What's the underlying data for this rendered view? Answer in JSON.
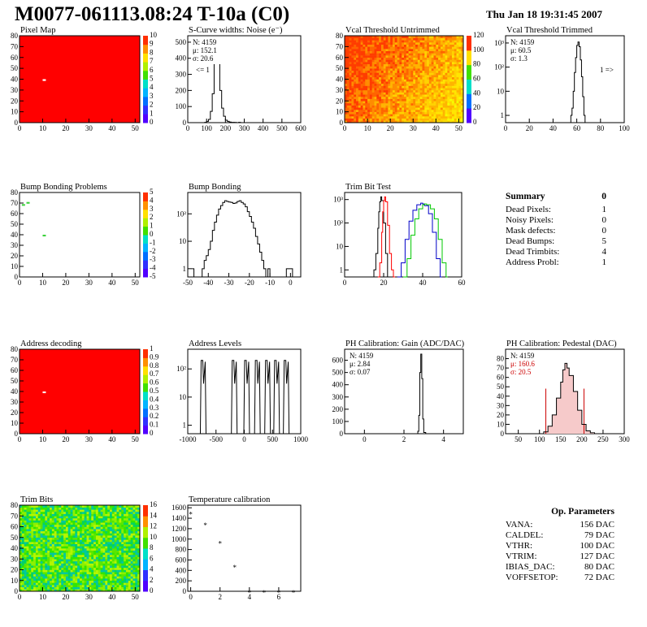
{
  "title": "M0077-061113.08:24 T-10a (C0)",
  "datetime": "Thu Jan 18 19:31:45 2007",
  "colors": {
    "red": "#ff0000",
    "green": "#00c800",
    "blue": "#0000c8",
    "pedestal_red": "#cc0000"
  },
  "summary": {
    "title": "Summary",
    "total": "0",
    "rows": [
      {
        "label": "Dead Pixels:",
        "value": "1"
      },
      {
        "label": "Noisy Pixels:",
        "value": "0"
      },
      {
        "label": "Mask defects:",
        "value": "0"
      },
      {
        "label": "Dead Bumps:",
        "value": "5"
      },
      {
        "label": "Dead Trimbits:",
        "value": "4"
      },
      {
        "label": "Address Probl:",
        "value": "1"
      }
    ]
  },
  "op_params": {
    "title": "Op. Parameters",
    "rows": [
      {
        "label": "VANA:",
        "value": "156 DAC"
      },
      {
        "label": "CALDEL:",
        "value": "79 DAC"
      },
      {
        "label": "VTHR:",
        "value": "100 DAC"
      },
      {
        "label": "VTRIM:",
        "value": "127 DAC"
      },
      {
        "label": "IBIAS_DAC:",
        "value": "80 DAC"
      },
      {
        "label": "VOFFSETOP:",
        "value": "72 DAC"
      }
    ]
  },
  "chart_data": [
    {
      "id": "pixel-map",
      "type": "heatmap",
      "title": "Pixel Map",
      "xlim": [
        0,
        52
      ],
      "ylim": [
        0,
        80
      ],
      "xticks": [
        "0",
        "10",
        "20",
        "30",
        "40",
        "50"
      ],
      "yticks": [
        "0",
        "10",
        "20",
        "30",
        "40",
        "50",
        "60",
        "70",
        "80"
      ],
      "fill": "red",
      "spots": [
        {
          "x": 10,
          "y": 39,
          "color": "white"
        }
      ],
      "palette_labels": [
        "0",
        "1",
        "2",
        "3",
        "4",
        "5",
        "6",
        "7",
        "8",
        "9",
        "10"
      ]
    },
    {
      "id": "scurve-widths",
      "type": "line",
      "title": "S-Curve widths: Noise (e⁻)",
      "xlim": [
        0,
        600
      ],
      "ylim": [
        0,
        540
      ],
      "xticks": [
        "0",
        "100",
        "200",
        "300",
        "400",
        "500",
        "600"
      ],
      "yticks": [
        "0",
        "100",
        "200",
        "300",
        "400",
        "500"
      ],
      "stats": [
        "N: 4159",
        "μ: 152.1",
        "σ: 20.6"
      ],
      "annotation": "<= 1",
      "x": [
        80,
        90,
        100,
        110,
        120,
        130,
        140,
        150,
        160,
        170,
        180,
        190,
        200,
        210,
        220,
        230,
        240,
        250,
        260,
        270,
        280
      ],
      "y": [
        0,
        2,
        8,
        20,
        70,
        180,
        420,
        520,
        400,
        200,
        90,
        40,
        15,
        8,
        4,
        2,
        2,
        1,
        0,
        2,
        0
      ]
    },
    {
      "id": "vcal-untrimmed",
      "type": "heatmap",
      "title": "Vcal Threshold Untrimmed",
      "xlim": [
        0,
        52
      ],
      "ylim": [
        0,
        80
      ],
      "xticks": [
        "0",
        "10",
        "20",
        "30",
        "40",
        "50"
      ],
      "yticks": [
        "0",
        "10",
        "20",
        "30",
        "40",
        "50",
        "60",
        "70",
        "80"
      ],
      "fill": "gradient-orange-yellow",
      "palette_labels": [
        "0",
        "20",
        "40",
        "60",
        "80",
        "100",
        "120"
      ]
    },
    {
      "id": "vcal-trimmed",
      "type": "line",
      "log": true,
      "title": "Vcal Threshold Trimmed",
      "xlim": [
        0,
        100
      ],
      "ylim": [
        0.5,
        2000
      ],
      "xticks": [
        "0",
        "20",
        "40",
        "60",
        "80",
        "100"
      ],
      "yticks": [
        "1",
        "10",
        "10²",
        "10³"
      ],
      "stats": [
        "N: 4159",
        "μ: 60.5",
        "σ:  1.3"
      ],
      "annotation": "1 =>",
      "x": [
        54,
        55,
        56,
        57,
        58,
        59,
        60,
        61,
        62,
        63,
        64,
        65,
        66,
        67
      ],
      "y": [
        0,
        1,
        2,
        10,
        60,
        250,
        800,
        1100,
        700,
        200,
        40,
        6,
        1,
        0
      ]
    },
    {
      "id": "bump-problems",
      "type": "heatmap",
      "title": "Bump Bonding Problems",
      "xlim": [
        0,
        52
      ],
      "ylim": [
        0,
        80
      ],
      "xticks": [
        "0",
        "10",
        "20",
        "30",
        "40",
        "50"
      ],
      "yticks": [
        "0",
        "10",
        "20",
        "30",
        "40",
        "50",
        "60",
        "70",
        "80"
      ],
      "fill": "white",
      "spots": [
        {
          "x": 10,
          "y": 39,
          "color": "#3cd23c"
        },
        {
          "x": 1,
          "y": 68,
          "color": "#3cd23c"
        },
        {
          "x": 3,
          "y": 70,
          "color": "#3cd23c"
        }
      ],
      "palette_labels": [
        "-5",
        "-4",
        "-3",
        "-2",
        "-1",
        "0",
        "1",
        "2",
        "3",
        "4",
        "5"
      ]
    },
    {
      "id": "bump-bonding",
      "type": "line",
      "log": true,
      "title": "Bump Bonding",
      "xlim": [
        -50,
        5
      ],
      "ylim": [
        0.5,
        600
      ],
      "xticks": [
        "-50",
        "-40",
        "-30",
        "-20",
        "-10",
        "0"
      ],
      "yticks": [
        "1",
        "10",
        "10²"
      ],
      "x": [
        -48,
        -47,
        -46,
        -45,
        -44,
        -43,
        -42,
        -41,
        -40,
        -39,
        -38,
        -37,
        -36,
        -35,
        -34,
        -33,
        -32,
        -31,
        -30,
        -29,
        -28,
        -27,
        -26,
        -25,
        -24,
        -23,
        -22,
        -21,
        -20,
        -19,
        -18,
        -17,
        -16,
        -15,
        -14,
        -13,
        -12,
        -11,
        -10,
        -9,
        -8,
        -7,
        -6,
        -5,
        -4,
        -3,
        -2,
        -1,
        0,
        1,
        2
      ],
      "y": [
        1,
        0,
        0,
        0,
        0,
        1,
        2,
        3,
        5,
        10,
        25,
        50,
        90,
        150,
        200,
        260,
        300,
        280,
        270,
        260,
        240,
        250,
        280,
        300,
        260,
        230,
        180,
        120,
        80,
        50,
        30,
        15,
        8,
        4,
        2,
        1,
        0,
        1,
        0,
        0,
        0,
        0,
        0,
        0,
        0,
        0,
        1,
        1,
        1,
        0,
        0
      ]
    },
    {
      "id": "trim-bit-test",
      "type": "line",
      "log": true,
      "title": "Trim Bit Test",
      "xlim": [
        0,
        60
      ],
      "ylim": [
        0.5,
        2000
      ],
      "xticks": [
        "0",
        "20",
        "40",
        "60"
      ],
      "yticks": [
        "1",
        "10",
        "10²",
        "10³"
      ],
      "series": [
        {
          "color": "black",
          "x": [
            14,
            15,
            16,
            17,
            17.5,
            18,
            18.5,
            19,
            20,
            21,
            22
          ],
          "y": [
            0,
            1,
            5,
            60,
            300,
            800,
            1300,
            900,
            100,
            5,
            0
          ]
        },
        {
          "color": "red",
          "x": [
            17,
            18,
            19,
            19.5,
            20,
            20.5,
            21,
            22,
            23,
            24,
            25
          ],
          "y": [
            0,
            2,
            40,
            300,
            900,
            1300,
            800,
            80,
            5,
            1,
            0
          ]
        },
        {
          "color": "blue",
          "x": [
            27,
            29,
            31,
            33,
            35,
            37,
            39,
            40,
            41,
            43,
            45,
            47,
            49
          ],
          "y": [
            0,
            2,
            20,
            120,
            350,
            600,
            700,
            650,
            550,
            250,
            40,
            3,
            0
          ]
        },
        {
          "color": "green",
          "x": [
            30,
            32,
            34,
            36,
            38,
            40,
            41,
            42,
            44,
            46,
            48,
            50,
            52
          ],
          "y": [
            0,
            3,
            30,
            150,
            400,
            600,
            650,
            600,
            400,
            150,
            20,
            2,
            0
          ]
        }
      ]
    },
    {
      "id": "address-decoding",
      "type": "heatmap",
      "title": "Address decoding",
      "xlim": [
        0,
        52
      ],
      "ylim": [
        0,
        80
      ],
      "xticks": [
        "0",
        "10",
        "20",
        "30",
        "40",
        "50"
      ],
      "yticks": [
        "0",
        "10",
        "20",
        "30",
        "40",
        "50",
        "60",
        "70",
        "80"
      ],
      "fill": "red",
      "spots": [
        {
          "x": 10,
          "y": 39,
          "color": "white"
        }
      ],
      "palette_labels": [
        "0",
        "0.1",
        "0.2",
        "0.3",
        "0.4",
        "0.5",
        "0.6",
        "0.7",
        "0.8",
        "0.9",
        "1"
      ]
    },
    {
      "id": "address-levels",
      "type": "line",
      "log": true,
      "title": "Address Levels",
      "xlim": [
        -1000,
        1000
      ],
      "ylim": [
        0.5,
        500
      ],
      "xticks": [
        "-1000",
        "-500",
        "0",
        "500",
        "1000"
      ],
      "yticks": [
        "1",
        "10",
        "10²"
      ],
      "peaks": [
        -720,
        -170,
        50,
        240,
        420,
        580,
        750
      ]
    },
    {
      "id": "ph-gain",
      "type": "line",
      "title": "PH Calibration: Gain (ADC/DAC)",
      "xlim": [
        -1,
        5
      ],
      "ylim": [
        0,
        690
      ],
      "xticks": [
        "0",
        "2",
        "4"
      ],
      "yticks": [
        "0",
        "100",
        "200",
        "300",
        "400",
        "500",
        "600"
      ],
      "stats": [
        "N: 4159",
        "μ: 2.84",
        "σ: 0.07"
      ],
      "x": [
        2.6,
        2.7,
        2.75,
        2.8,
        2.85,
        2.9,
        2.95,
        3.0,
        3.1
      ],
      "y": [
        0,
        20,
        150,
        500,
        650,
        450,
        120,
        10,
        0
      ]
    },
    {
      "id": "ph-pedestal",
      "type": "line",
      "title": "PH Calibration: Pedestal (DAC)",
      "xlim": [
        20,
        300
      ],
      "ylim": [
        0,
        90
      ],
      "xticks": [
        "50",
        "100",
        "150",
        "200",
        "250",
        "300"
      ],
      "yticks": [
        "0",
        "10",
        "20",
        "30",
        "40",
        "50",
        "60",
        "70",
        "80"
      ],
      "stats": [
        "N: 4159",
        "μ: 160.6",
        "σ: 20.5"
      ],
      "x": [
        100,
        110,
        120,
        130,
        140,
        150,
        155,
        160,
        165,
        170,
        180,
        190,
        200,
        210,
        220,
        230
      ],
      "y": [
        0,
        2,
        8,
        20,
        38,
        55,
        68,
        75,
        70,
        62,
        45,
        25,
        10,
        3,
        1,
        0
      ],
      "cut_lines": [
        115,
        205
      ]
    },
    {
      "id": "trim-bits",
      "type": "heatmap",
      "title": "Trim Bits",
      "xlim": [
        0,
        52
      ],
      "ylim": [
        0,
        80
      ],
      "xticks": [
        "0",
        "10",
        "20",
        "30",
        "40",
        "50"
      ],
      "yticks": [
        "0",
        "10",
        "20",
        "30",
        "40",
        "50",
        "60",
        "70",
        "80"
      ],
      "fill": "gradient-green",
      "palette_labels": [
        "0",
        "2",
        "4",
        "6",
        "8",
        "10",
        "12",
        "14",
        "16"
      ]
    },
    {
      "id": "temperature-calibration",
      "type": "scatter",
      "title": "Temperature calibration",
      "xlim": [
        -0.2,
        7.5
      ],
      "ylim": [
        0,
        1650
      ],
      "xticks": [
        "0",
        "2",
        "4",
        "6"
      ],
      "yticks": [
        "0",
        "200",
        "400",
        "600",
        "800",
        "1000",
        "1200",
        "1400",
        "1600"
      ],
      "x": [
        0,
        1,
        2,
        3,
        4,
        5,
        6,
        7
      ],
      "y": [
        1500,
        1290,
        940,
        480,
        0,
        0,
        0,
        0
      ]
    }
  ]
}
